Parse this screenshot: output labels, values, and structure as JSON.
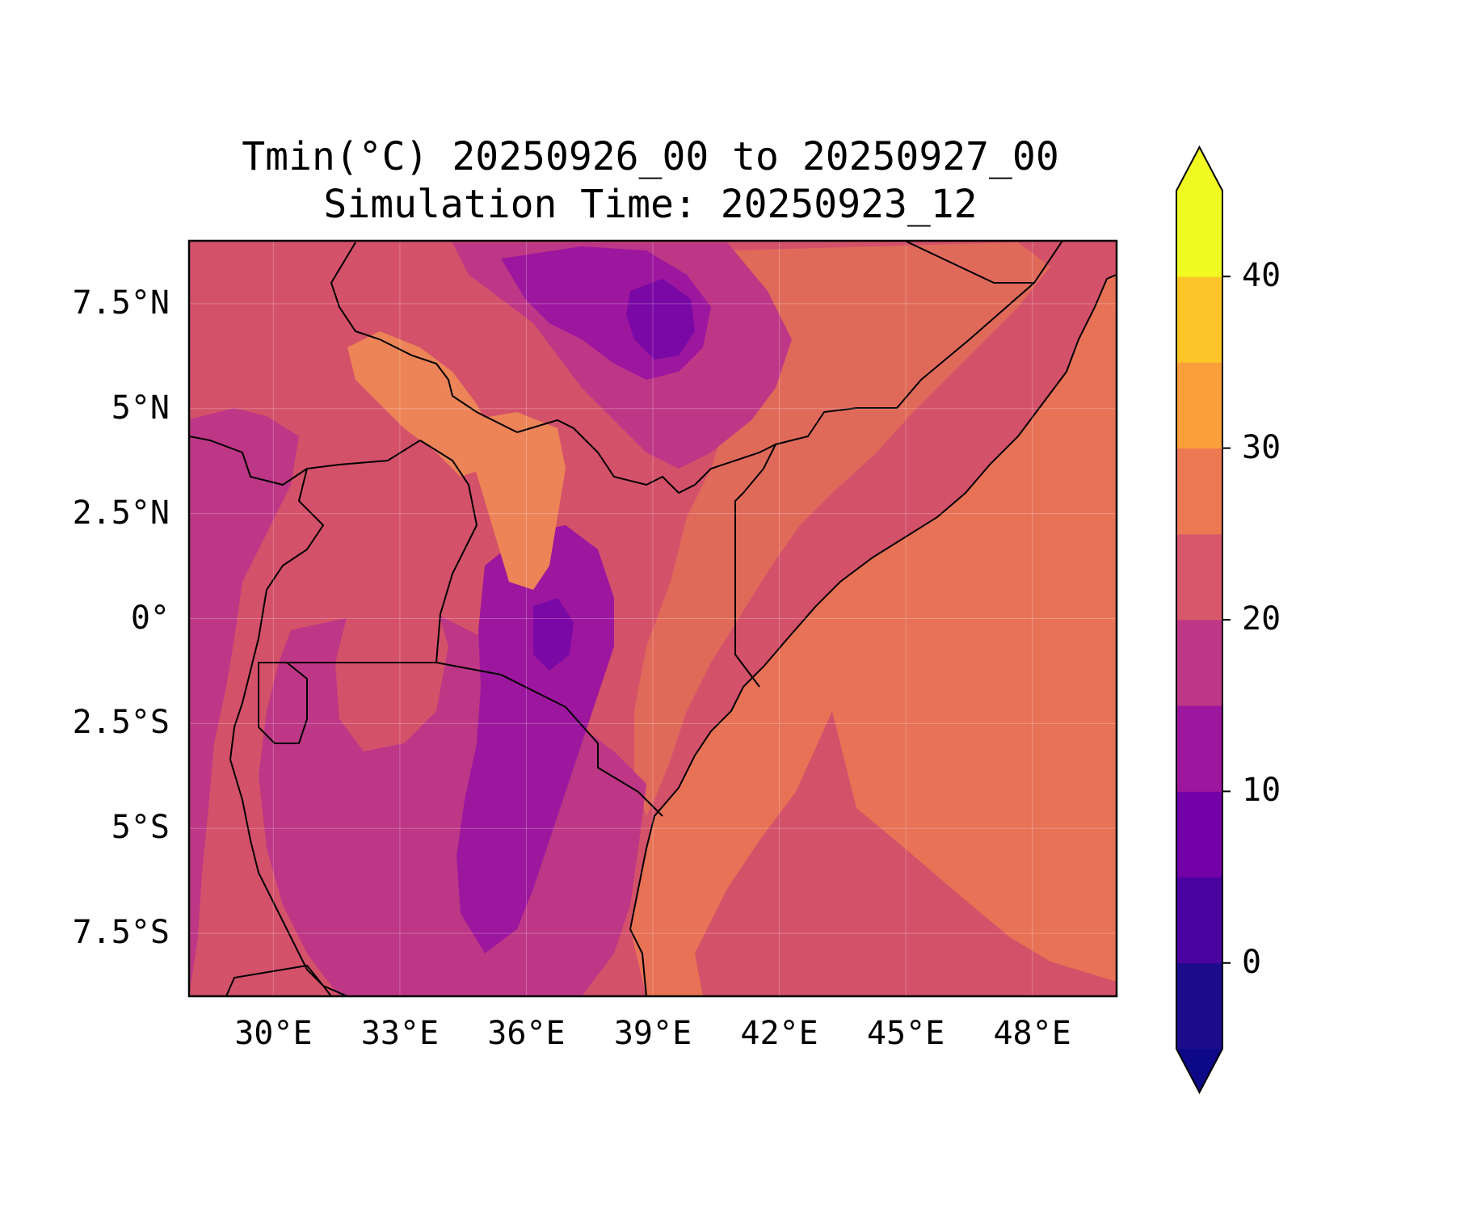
{
  "title": {
    "line1": "Tmin(°C) 20250926_00 to 20250927_00",
    "line2": "Simulation Time: 20250923_12"
  },
  "map": {
    "lon_range": [
      28,
      50
    ],
    "lat_range": [
      -9,
      9
    ],
    "lat_ticks": [
      {
        "value": 7.5,
        "label": "7.5°N"
      },
      {
        "value": 5,
        "label": "5°N"
      },
      {
        "value": 2.5,
        "label": "2.5°N"
      },
      {
        "value": 0,
        "label": "0°"
      },
      {
        "value": -2.5,
        "label": "2.5°S"
      },
      {
        "value": -5,
        "label": "5°S"
      },
      {
        "value": -7.5,
        "label": "7.5°S"
      }
    ],
    "lon_ticks": [
      {
        "value": 30,
        "label": "30°E"
      },
      {
        "value": 33,
        "label": "33°E"
      },
      {
        "value": 36,
        "label": "36°E"
      },
      {
        "value": 39,
        "label": "39°E"
      },
      {
        "value": 42,
        "label": "42°E"
      },
      {
        "value": 45,
        "label": "45°E"
      },
      {
        "value": 48,
        "label": "48°E"
      }
    ],
    "grid": true
  },
  "colorbar": {
    "levels": [
      -5,
      0,
      5,
      10,
      15,
      20,
      25,
      30,
      35,
      40,
      45
    ],
    "colors": [
      "#1c0c8c",
      "#4a03a1",
      "#7201a8",
      "#9c179e",
      "#bd3786",
      "#d8576b",
      "#ed7953",
      "#fb9f3a",
      "#fdc527",
      "#f0f921"
    ],
    "under_color": "#0d0887",
    "over_color": "#f0f921",
    "ticks": [
      {
        "value": 0,
        "label": "0"
      },
      {
        "value": 10,
        "label": "10"
      },
      {
        "value": 20,
        "label": "20"
      },
      {
        "value": 30,
        "label": "30"
      },
      {
        "value": 40,
        "label": "40"
      }
    ],
    "extend": "both",
    "colormap": "plasma"
  },
  "colors": {
    "land_base": "#d4516a",
    "ocean": "#e87256",
    "warm_land": "#e06a5a",
    "cool_1": "#bd3786",
    "cool_2": "#9c179e",
    "cool_3": "#7a08a5",
    "orange_patch": "#ec8457",
    "border": "#000000"
  }
}
